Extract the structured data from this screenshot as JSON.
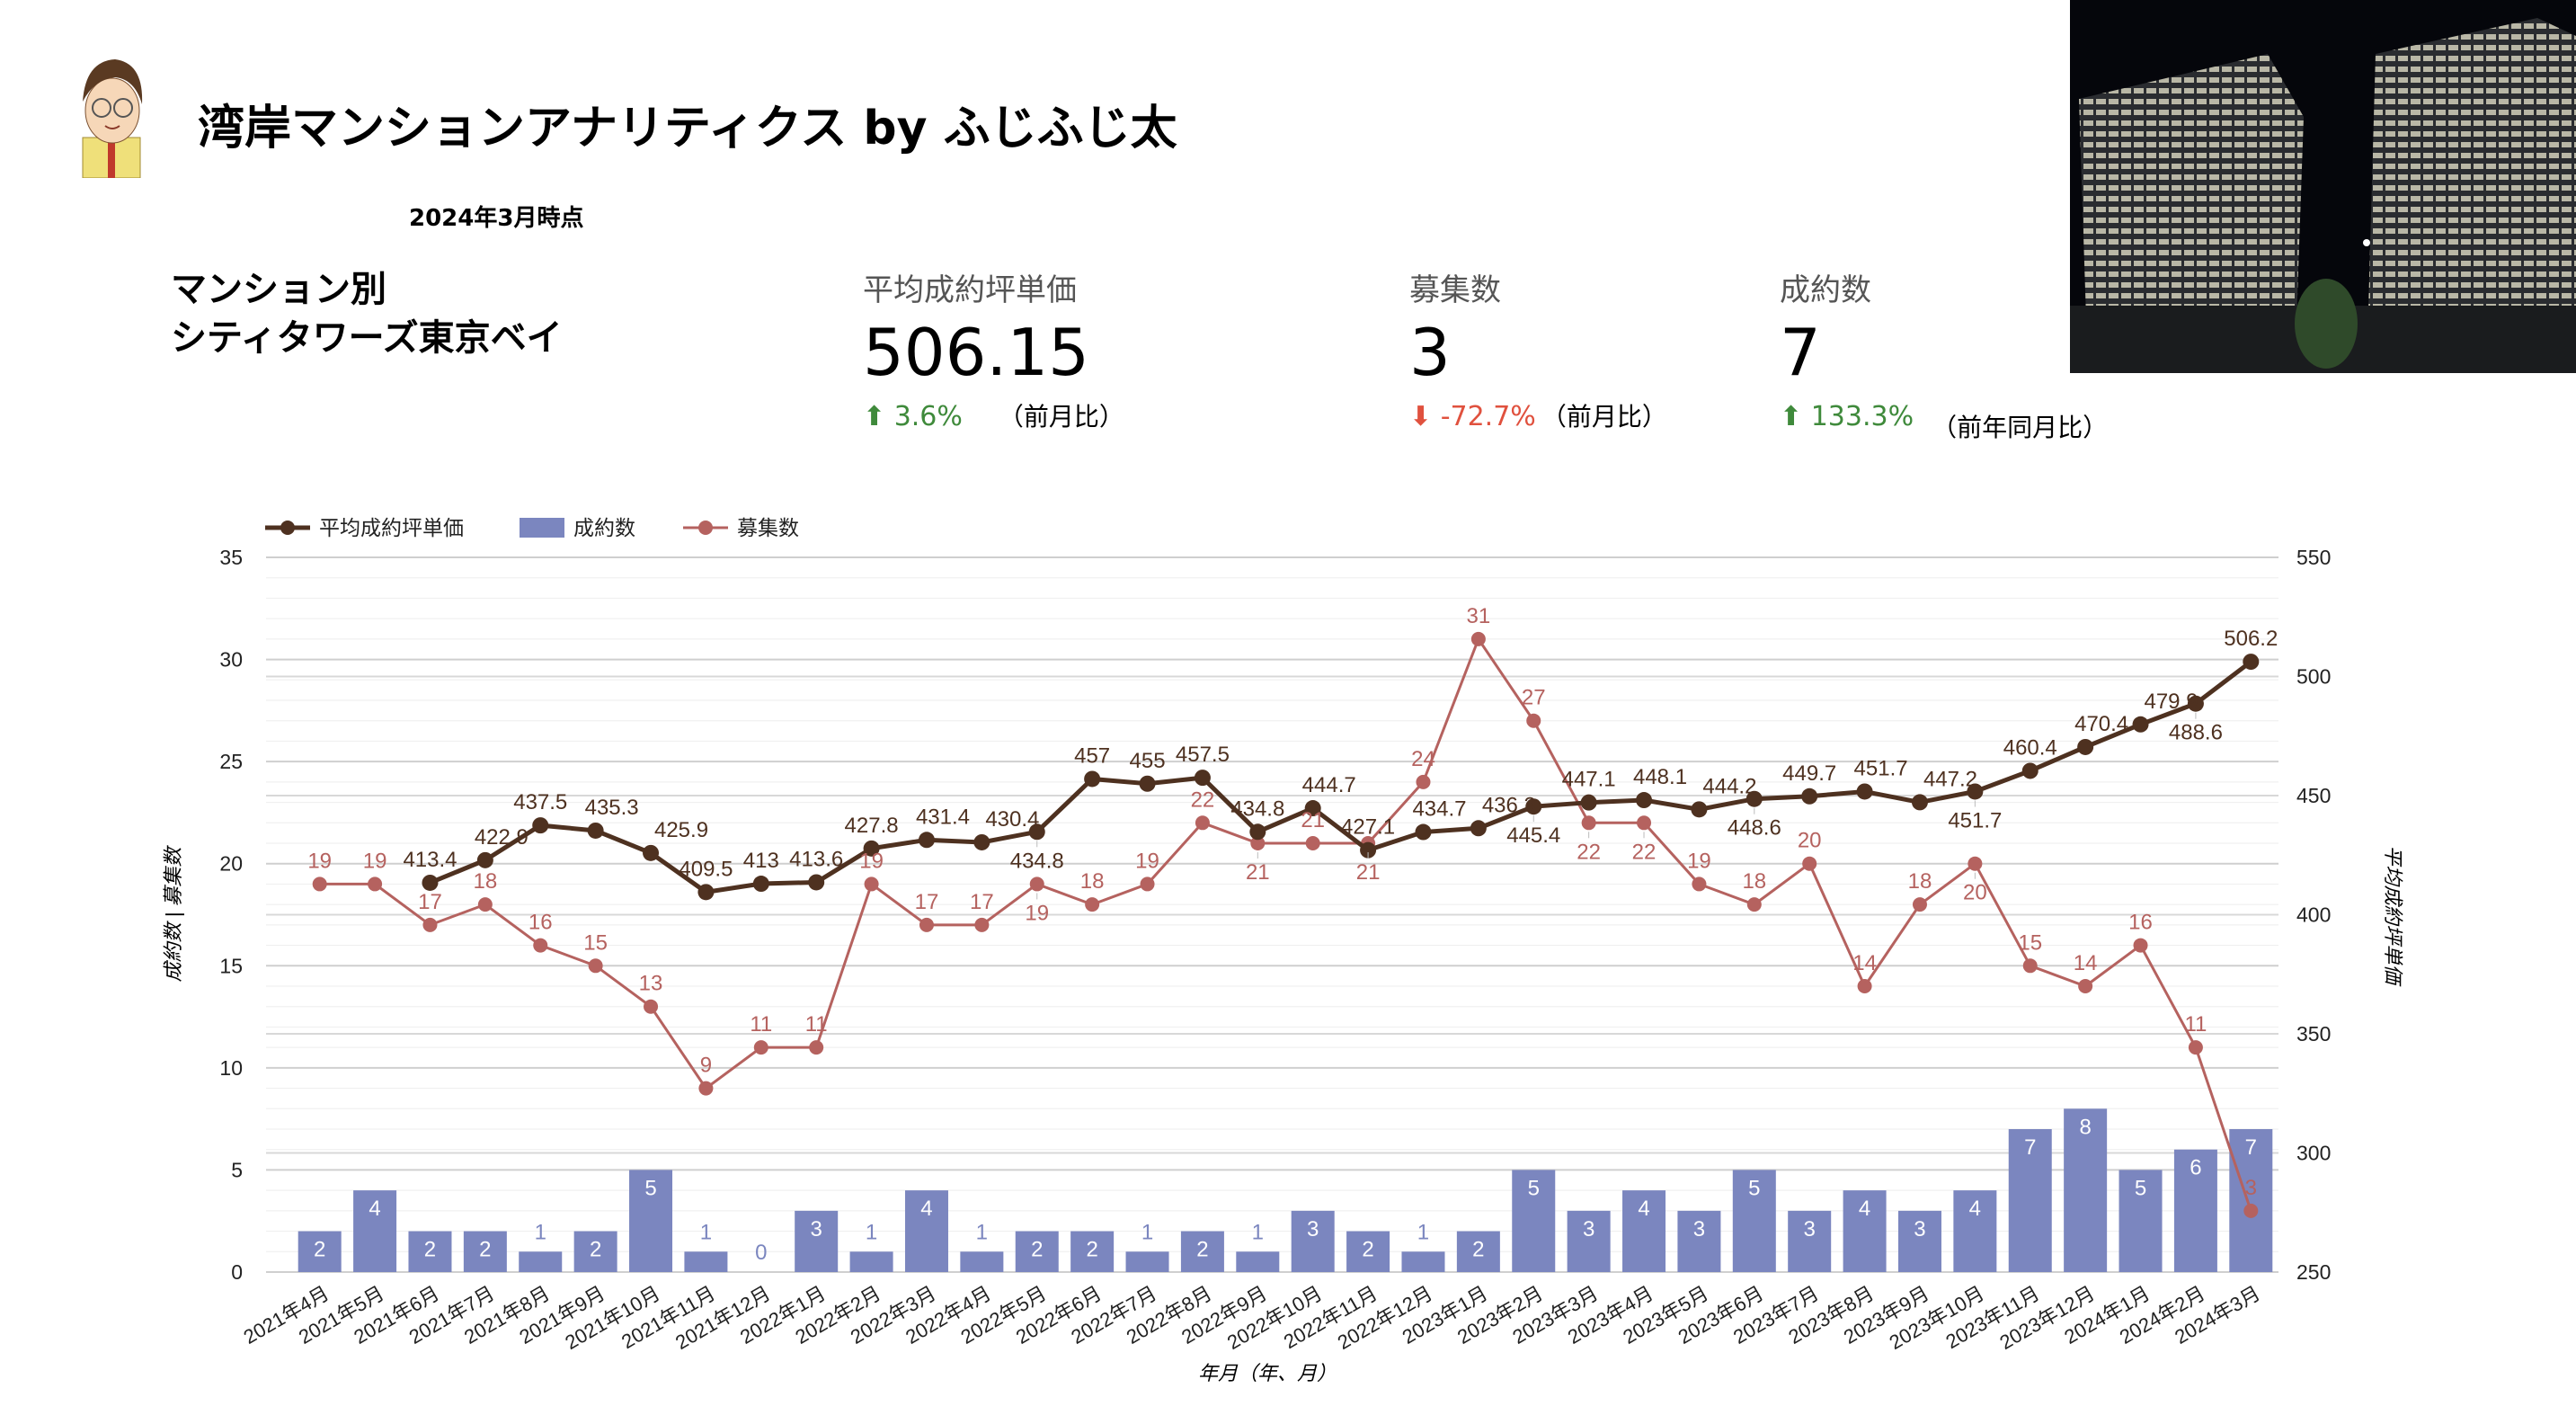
{
  "header": {
    "title": "湾岸マンションアナリティクス by ふじふじ太",
    "as_of": "2024年3月時点",
    "mansion_label": "マンション別",
    "mansion_name": "シティタワーズ東京ベイ"
  },
  "kpis": [
    {
      "label": "平均成約坪単価",
      "value": "506.15",
      "change": "3.6%",
      "direction": "up",
      "note": "（前月比）"
    },
    {
      "label": "募集数",
      "value": "3",
      "change": "-72.7%",
      "direction": "down",
      "note": "（前月比）"
    },
    {
      "label": "成約数",
      "value": "7",
      "change": "133.3%",
      "direction": "up",
      "note": "（前年同月比）"
    }
  ],
  "colors": {
    "price_line": "#4e3120",
    "contracts_bar": "#7b86bf",
    "listings_line": "#b5625f",
    "up": "#3f8a3b",
    "down": "#e0513e"
  },
  "chart_data": {
    "type": "bar",
    "xlabel": "年月（年、月）",
    "ylabel": "成約数 | 募集数",
    "y2label": "平均成約坪単価",
    "ylim": [
      0,
      35
    ],
    "y2lim": [
      250,
      550
    ],
    "yticks": [
      0,
      5,
      10,
      15,
      20,
      25,
      30,
      35
    ],
    "y2ticks": [
      250,
      300,
      350,
      400,
      450,
      500,
      550
    ],
    "grid": true,
    "legend_position": "top-left",
    "categories": [
      "2021年4月",
      "2021年5月",
      "2021年6月",
      "2021年7月",
      "2021年8月",
      "2021年9月",
      "2021年10月",
      "2021年11月",
      "2021年12月",
      "2022年1月",
      "2022年2月",
      "2022年3月",
      "2022年4月",
      "2022年5月",
      "2022年6月",
      "2022年7月",
      "2022年8月",
      "2022年9月",
      "2022年10月",
      "2022年11月",
      "2022年12月",
      "2023年1月",
      "2023年2月",
      "2023年3月",
      "2023年4月",
      "2023年5月",
      "2023年6月",
      "2023年7月",
      "2023年8月",
      "2023年9月",
      "2023年10月",
      "2023年11月",
      "2023年12月",
      "2024年1月",
      "2024年2月",
      "2024年3月"
    ],
    "series": [
      {
        "name": "平均成約坪単価",
        "type": "line",
        "axis": "right",
        "values": [
          null,
          null,
          413.4,
          422.9,
          437.5,
          435.3,
          425.9,
          409.5,
          413,
          413.6,
          427.8,
          431.4,
          430.4,
          434.8,
          457,
          455,
          457.5,
          434.8,
          444.7,
          427.1,
          434.7,
          436.3,
          445.4,
          447.1,
          448.1,
          444.2,
          448.6,
          449.7,
          451.7,
          447.2,
          451.7,
          460.4,
          470.4,
          479.9,
          488.6,
          506.2
        ]
      },
      {
        "name": "成約数",
        "type": "bar",
        "axis": "left",
        "values": [
          2,
          4,
          2,
          2,
          1,
          2,
          5,
          1,
          0,
          3,
          1,
          4,
          1,
          2,
          2,
          1,
          2,
          1,
          3,
          2,
          1,
          2,
          5,
          3,
          4,
          3,
          5,
          3,
          4,
          3,
          4,
          7,
          8,
          5,
          6,
          7
        ]
      },
      {
        "name": "募集数",
        "type": "line",
        "axis": "left",
        "values": [
          19,
          19,
          17,
          18,
          16,
          15,
          13,
          9,
          11,
          11,
          19,
          17,
          17,
          19,
          18,
          19,
          22,
          21,
          21,
          21,
          24,
          31,
          27,
          22,
          22,
          19,
          18,
          20,
          14,
          18,
          20,
          15,
          14,
          16,
          11,
          3
        ]
      }
    ]
  }
}
